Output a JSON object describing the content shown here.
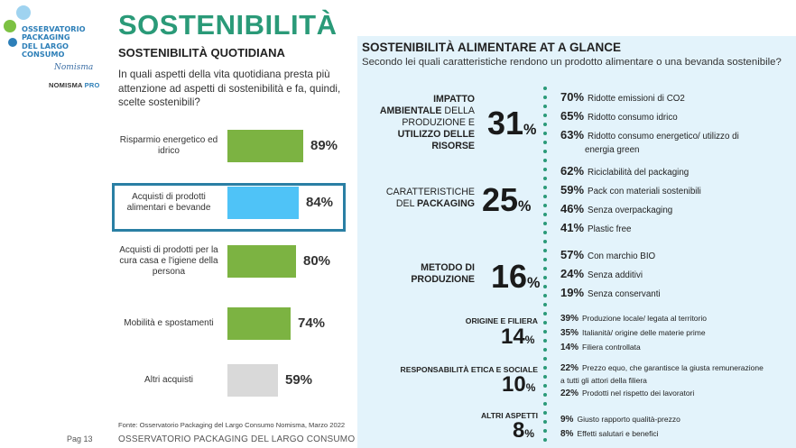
{
  "logo": {
    "line1": "OSSERVATORIO",
    "line2": "PACKAGING",
    "line3": "DEL LARGO",
    "line4": "CONSUMO",
    "nomisma": "Nomisma",
    "brand": "NOMISMA",
    "pro": "PRO"
  },
  "page": {
    "number": "Pag 13"
  },
  "header": {
    "title": "SOSTENIBILITÀ",
    "subtitle": "SOSTENIBILITÀ QUOTIDIANA",
    "question": "In quali aspetti della vita quotidiana presta più attenzione ad aspetti di sostenibilità e fa, quindi, scelte sostenibili?"
  },
  "colors": {
    "green": "#7cb342",
    "blue": "#4fc3f7",
    "grey": "#d9d9d9",
    "accent": "#2a9a78",
    "panel": "#e3f3fb"
  },
  "chart_data": {
    "type": "bar",
    "orientation": "horizontal",
    "categories": [
      "Risparmio energetico ed idrico",
      "Acquisti di prodotti alimentari e bevande",
      "Acquisti di prodotti per la cura casa e l'igiene della persona",
      "Mobilità e spostamenti",
      "Altri acquisti"
    ],
    "values": [
      89,
      84,
      80,
      74,
      59
    ],
    "value_labels": [
      "89%",
      "84%",
      "80%",
      "74%",
      "59%"
    ],
    "bar_colors": [
      "#7cb342",
      "#4fc3f7",
      "#7cb342",
      "#7cb342",
      "#d9d9d9"
    ],
    "highlighted": "Acquisti di prodotti alimentari e bevande",
    "xlim": [
      0,
      100
    ]
  },
  "source": "Fonte: Osservatorio Packaging del Largo Consumo Nomisma, Marzo 2022",
  "footer": "OSSERVATORIO PACKAGING DEL LARGO CONSUMO | NOMISMA",
  "right": {
    "title": "SOSTENIBILITÀ ALIMENTARE AT A GLANCE",
    "question": "Secondo lei quali caratteristiche rendono un prodotto alimentare o una bevanda sostenibile?",
    "groups": [
      {
        "label_bold1": "IMPATTO",
        "label_bold2": "AMBIENTALE",
        "label_norm2": " DELLA",
        "label_norm3": "PRODUZIONE E",
        "label_bold4": "UTILIZZO DELLE",
        "label_bold5": "RISORSE",
        "pct": "31",
        "unit": "%",
        "items": [
          {
            "v": "70%",
            "t": "Ridotte emissioni di CO2"
          },
          {
            "v": "65%",
            "t": "Ridotto consumo idrico"
          },
          {
            "v": "63%",
            "t": "Ridotto consumo energetico/ utilizzo di"
          },
          {
            "v": "",
            "t": "energia green"
          }
        ]
      },
      {
        "label1": "CARATTERISTICHE",
        "label2a": "DEL ",
        "label2b": "PACKAGING",
        "pct": "25",
        "unit": "%",
        "items": [
          {
            "v": "62%",
            "t": "Riciclabilità del packaging"
          },
          {
            "v": "59%",
            "t": "Pack con materiali sostenibili"
          },
          {
            "v": "46%",
            "t": "Senza overpackaging"
          },
          {
            "v": "41%",
            "t": "Plastic free"
          }
        ]
      },
      {
        "label1": "METODO DI",
        "label2": "PRODUZIONE",
        "pct": "16",
        "unit": "%",
        "items": [
          {
            "v": "57%",
            "t": "Con marchio BIO"
          },
          {
            "v": "24%",
            "t": "Senza additivi"
          },
          {
            "v": "19%",
            "t": "Senza conservanti"
          }
        ]
      },
      {
        "label1": "ORIGINE E FILIERA",
        "pct": "14",
        "unit": "%",
        "items": [
          {
            "v": "39%",
            "t": "Produzione locale/ legata al territorio"
          },
          {
            "v": "35%",
            "t": "Italianità/ origine delle materie prime"
          },
          {
            "v": "14%",
            "t": "Filiera controllata"
          }
        ]
      },
      {
        "label1": "RESPONSABILITÀ ETICA E SOCIALE",
        "pct": "10",
        "unit": "%",
        "items": [
          {
            "v": "22%",
            "t": "Prezzo equo, che garantisce la giusta remunerazione"
          },
          {
            "v": "",
            "t": "a tutti gli attori della filiera"
          },
          {
            "v": "22%",
            "t": "Prodotti nel rispetto dei lavoratori"
          }
        ]
      },
      {
        "label1": "ALTRI ASPETTI",
        "pct": "8",
        "unit": "%",
        "items": [
          {
            "v": "9%",
            "t": "Giusto rapporto qualità-prezzo"
          },
          {
            "v": "8%",
            "t": "Effetti salutari e benefici"
          }
        ]
      }
    ]
  }
}
